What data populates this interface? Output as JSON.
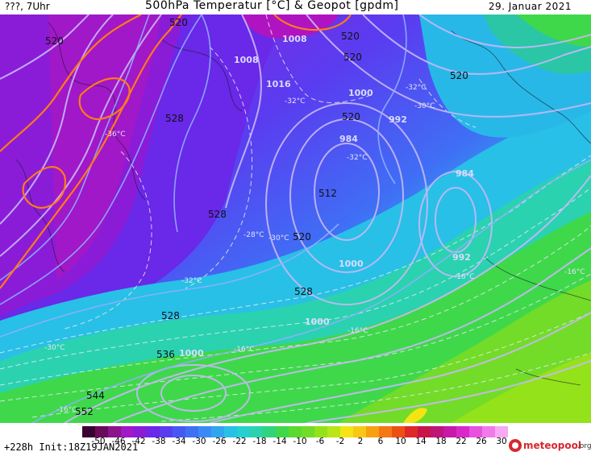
{
  "header": {
    "left": "???, 7Uhr",
    "title": "500hPa Temperatur [°C] & Geopot [gpdm]",
    "date": "29. Januar 2021"
  },
  "footer": {
    "info": "+228h Init:18Z19JAN2021",
    "colorbar_ticks": [
      "-50",
      "-46",
      "-42",
      "-38",
      "-34",
      "-30",
      "-26",
      "-22",
      "-18",
      "-14",
      "-10",
      "-6",
      "-2",
      "2",
      "6",
      "10",
      "14",
      "18",
      "22",
      "26",
      "30"
    ]
  },
  "logo": {
    "name": "meteopool",
    "tld": ".org"
  },
  "map": {
    "geopot_labels": [
      "520",
      "520",
      "528",
      "520",
      "528",
      "512",
      "520",
      "528",
      "528",
      "536",
      "544",
      "552",
      "520",
      "520",
      "520"
    ],
    "pressure_labels": [
      "1000",
      "992",
      "984",
      "984",
      "992",
      "1000",
      "1000",
      "1008",
      "1016",
      "1000",
      "1008"
    ],
    "temp_labels": [
      "-36°C",
      "-32°C",
      "-30°C",
      "-32°C",
      "-28°C",
      "-32°C",
      "-30°C",
      "-16°C",
      "-16°C",
      "-16°C",
      "-16°C",
      "-30°C",
      "-32°C",
      "-16°C"
    ]
  },
  "colors": {
    "cold_purple": "#7b18d8",
    "violet": "#5a3cf0",
    "blue": "#3f6ff5",
    "cyan": "#28c8e8",
    "teal": "#2ad2b0",
    "green": "#3fd84a",
    "lime": "#86e020",
    "yellow": "#f4e414"
  }
}
